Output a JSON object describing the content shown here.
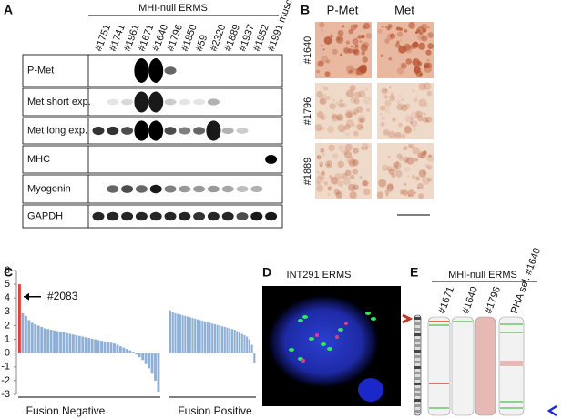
{
  "panel_a": {
    "letter": "A",
    "group_label": "MHI-null ERMS",
    "lanes": [
      "#1751",
      "#1741",
      "#1961",
      "#1671",
      "#1640",
      "#1796",
      "#1850",
      "#59",
      "#2320",
      "#1889",
      "#1937",
      "#1952",
      "#1991 muscle"
    ],
    "rows": [
      "P-Met",
      "Met short exp.",
      "Met long exp.",
      "MHC",
      "Myogenin",
      "GAPDH"
    ]
  },
  "panel_b": {
    "letter": "B",
    "columns": [
      "P-Met",
      "Met"
    ],
    "rows": [
      "#1640",
      "#1796",
      "#1889"
    ]
  },
  "panel_c": {
    "letter": "C",
    "chart": {
      "type": "bar",
      "color": "#8fb0d6",
      "highlight_color": "#e0403a",
      "annotation": "#2083",
      "ylim": [
        -3,
        6
      ],
      "yticks": [
        -3,
        -2,
        -1,
        0,
        1,
        2,
        3,
        4,
        5,
        6
      ],
      "groups": [
        {
          "name": "Fusion Negative",
          "values": [
            5.0,
            2.9,
            2.7,
            2.4,
            2.2,
            2.1,
            2.0,
            1.9,
            1.8,
            1.75,
            1.7,
            1.65,
            1.6,
            1.55,
            1.5,
            1.45,
            1.4,
            1.35,
            1.3,
            1.25,
            1.2,
            1.15,
            1.1,
            1.05,
            1.0,
            0.95,
            0.9,
            0.85,
            0.8,
            0.75,
            0.7,
            0.6,
            0.5,
            0.4,
            0.3,
            0.2,
            0.1,
            -0.1,
            -0.3,
            -0.5,
            -0.8,
            -1.1,
            -1.5,
            -2.0,
            -2.8
          ]
        },
        {
          "name": "Fusion Positive",
          "values": [
            3.1,
            3.0,
            2.9,
            2.85,
            2.8,
            2.75,
            2.7,
            2.65,
            2.6,
            2.55,
            2.5,
            2.45,
            2.4,
            2.35,
            2.3,
            2.25,
            2.2,
            2.15,
            2.1,
            2.05,
            2.0,
            1.95,
            1.9,
            1.85,
            1.8,
            1.75,
            1.7,
            1.6,
            1.5,
            1.4,
            1.3,
            1.2,
            1.0,
            0.6,
            -0.7
          ]
        }
      ]
    }
  },
  "panel_d": {
    "letter": "D",
    "title": "INT291 ERMS"
  },
  "panel_e": {
    "letter": "E",
    "group_label": "MHI-null ERMS",
    "columns": [
      "#1671",
      "#1640",
      "#1796",
      "PHA sel. #1640"
    ]
  }
}
